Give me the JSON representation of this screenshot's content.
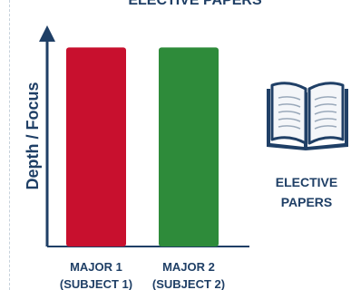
{
  "chart_data": {
    "type": "bar",
    "title": "ELECTIVE PAPERS",
    "xlabel": "",
    "ylabel": "Depth / Focus",
    "categories": [
      [
        "MAJOR 1",
        "(SUBJECT 1)"
      ],
      [
        "MAJOR 2",
        "(SUBJECT 2)"
      ]
    ],
    "values": [
      0.9,
      0.9
    ],
    "ylim": [
      0,
      1
    ],
    "colors": [
      "#c8102e",
      "#2e8b3a"
    ],
    "axis_color": "#1f3f66"
  },
  "annotation": {
    "icon": "open-book-icon",
    "lines": [
      "ELECTIVE",
      "PAPERS"
    ]
  }
}
